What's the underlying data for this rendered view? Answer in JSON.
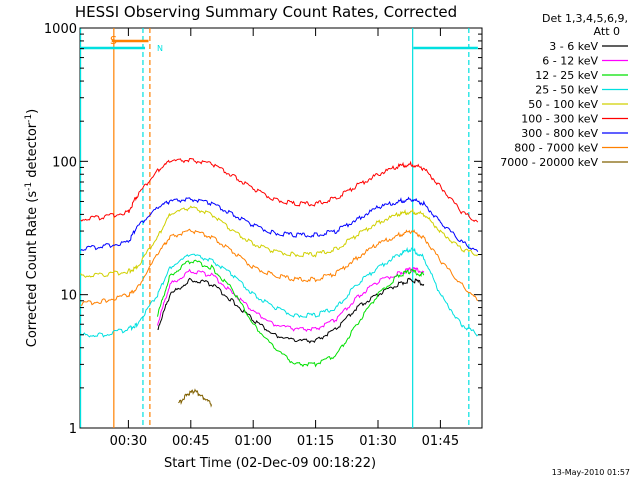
{
  "chart_data": {
    "type": "line",
    "title": "HESSI Observing Summary Count Rates, Corrected",
    "xlabel": "Start Time (02-Dec-09 00:18:22)",
    "ylabel": "Corrected Count Rate (s",
    "ylabel_sup1": "-1",
    "ylabel_mid": " detector",
    "ylabel_sup2": "-1",
    "ylabel_end": ")",
    "yscale": "log",
    "ylim": [
      1,
      1000
    ],
    "xlim": [
      "00:18:22",
      "01:55:00"
    ],
    "xticks": [
      "00:30",
      "00:45",
      "01:00",
      "01:15",
      "01:30",
      "01:45"
    ],
    "yticks": [
      "1",
      "10",
      "100",
      "1000"
    ],
    "legend_header": [
      "Det 1,3,4,5,6,9,",
      "Att 0"
    ],
    "legend_position": "right",
    "footer": "13-May-2010 01:57",
    "flag_label_s": "S",
    "flag_label_n": "N",
    "flag_values": [
      {
        "name": "flag-cyan-left",
        "from": "00:18:22",
        "to": "00:34:00",
        "color": "#00e0e0"
      },
      {
        "name": "flag-orange-s",
        "from": "00:26:00",
        "to": "00:34:50",
        "color": "#ff8000"
      },
      {
        "name": "flag-cyan-right",
        "from": "01:38:30",
        "to": "01:54:00",
        "color": "#00e0e0"
      }
    ],
    "vertical_markers": [
      {
        "time": "00:18:30",
        "color": "#00e0e0",
        "style": "solid"
      },
      {
        "time": "00:26:30",
        "color": "#ff8000",
        "style": "solid"
      },
      {
        "time": "00:33:30",
        "color": "#00e0e0",
        "style": "dashed"
      },
      {
        "time": "00:35:10",
        "color": "#ff8000",
        "style": "dashed"
      },
      {
        "time": "01:38:20",
        "color": "#00e0e0",
        "style": "solid"
      },
      {
        "time": "01:51:50",
        "color": "#00e0e0",
        "style": "dashed"
      }
    ],
    "series": [
      {
        "name": "3 - 6 keV",
        "color": "#000000",
        "times": [
          "00:37:00",
          "00:40:00",
          "00:45:00",
          "00:50:00",
          "00:55:00",
          "01:00:00",
          "01:05:00",
          "01:10:00",
          "01:15:00",
          "01:20:00",
          "01:25:00",
          "01:30:00",
          "01:35:00",
          "01:38:00",
          "01:41:00"
        ],
        "values": [
          5.5,
          10,
          13,
          12,
          9,
          6.5,
          5,
          4.5,
          4.5,
          5.5,
          8,
          10,
          12,
          13,
          12
        ]
      },
      {
        "name": "6 - 12 keV",
        "color": "#ff00ff",
        "times": [
          "00:37:00",
          "00:40:00",
          "00:45:00",
          "00:50:00",
          "00:55:00",
          "01:00:00",
          "01:05:00",
          "01:10:00",
          "01:15:00",
          "01:20:00",
          "01:25:00",
          "01:30:00",
          "01:35:00",
          "01:38:00",
          "01:41:00"
        ],
        "values": [
          6,
          12,
          15,
          14,
          10.5,
          7.5,
          6,
          5.5,
          5.5,
          6.5,
          9.5,
          12.5,
          14.5,
          15.5,
          15
        ]
      },
      {
        "name": "12 - 25 keV",
        "color": "#00e000",
        "times": [
          "00:37:00",
          "00:40:00",
          "00:45:00",
          "00:50:00",
          "00:55:00",
          "01:00:00",
          "01:05:00",
          "01:10:00",
          "01:15:00",
          "01:20:00",
          "01:25:00",
          "01:30:00",
          "01:35:00",
          "01:38:00",
          "01:41:00"
        ],
        "values": [
          7,
          14,
          18,
          16,
          11,
          6,
          4,
          3,
          3,
          3.5,
          6,
          10,
          14,
          15,
          14
        ]
      },
      {
        "name": "25 - 50 keV",
        "color": "#00e0e0",
        "times": [
          "00:18:30",
          "00:24:00",
          "00:30:00",
          "00:32:00",
          "00:37:00",
          "00:40:00",
          "00:45:00",
          "00:50:00",
          "00:55:00",
          "01:00:00",
          "01:05:00",
          "01:10:00",
          "01:15:00",
          "01:20:00",
          "01:25:00",
          "01:30:00",
          "01:35:00",
          "01:38:00",
          "01:41:00",
          "01:45:00",
          "01:50:00",
          "01:54:00"
        ],
        "values": [
          5,
          5,
          5.5,
          6,
          10,
          16,
          20,
          18,
          14,
          10,
          8,
          7,
          7,
          8,
          12,
          16,
          20,
          22,
          19,
          10,
          6,
          5
        ]
      },
      {
        "name": "50 - 100 keV",
        "color": "#d0d000",
        "times": [
          "00:18:30",
          "00:24:00",
          "00:30:00",
          "00:32:00",
          "00:37:00",
          "00:40:00",
          "00:45:00",
          "00:50:00",
          "00:55:00",
          "01:00:00",
          "01:05:00",
          "01:10:00",
          "01:15:00",
          "01:20:00",
          "01:25:00",
          "01:30:00",
          "01:35:00",
          "01:38:00",
          "01:41:00",
          "01:45:00",
          "01:50:00",
          "01:54:00"
        ],
        "values": [
          14,
          14,
          15,
          16,
          27,
          40,
          45,
          40,
          30,
          24,
          21,
          20,
          20,
          22,
          28,
          35,
          40,
          42,
          40,
          30,
          22,
          20
        ]
      },
      {
        "name": "100 - 300 keV",
        "color": "#ff0000",
        "times": [
          "00:18:30",
          "00:24:00",
          "00:30:00",
          "00:32:00",
          "00:37:00",
          "00:40:00",
          "00:45:00",
          "00:50:00",
          "00:55:00",
          "01:00:00",
          "01:05:00",
          "01:10:00",
          "01:15:00",
          "01:20:00",
          "01:25:00",
          "01:30:00",
          "01:35:00",
          "01:38:00",
          "01:41:00",
          "01:45:00",
          "01:50:00",
          "01:54:00"
        ],
        "values": [
          37,
          38,
          42,
          55,
          85,
          100,
          102,
          95,
          78,
          62,
          52,
          48,
          48,
          53,
          66,
          80,
          92,
          95,
          88,
          65,
          42,
          35
        ]
      },
      {
        "name": "300 - 800 keV",
        "color": "#0000ff",
        "times": [
          "00:18:30",
          "00:24:00",
          "00:30:00",
          "00:32:00",
          "00:37:00",
          "00:40:00",
          "00:45:00",
          "00:50:00",
          "00:55:00",
          "01:00:00",
          "01:05:00",
          "01:10:00",
          "01:15:00",
          "01:20:00",
          "01:25:00",
          "01:30:00",
          "01:35:00",
          "01:38:00",
          "01:41:00",
          "01:45:00",
          "01:50:00",
          "01:54:00"
        ],
        "values": [
          22,
          23,
          25,
          32,
          45,
          50,
          52,
          48,
          40,
          33,
          29,
          28,
          28,
          30,
          37,
          45,
          50,
          52,
          48,
          35,
          25,
          21
        ]
      },
      {
        "name": "800 - 7000 keV",
        "color": "#ff8000",
        "times": [
          "00:18:30",
          "00:24:00",
          "00:30:00",
          "00:32:00",
          "00:37:00",
          "00:40:00",
          "00:45:00",
          "00:50:00",
          "00:55:00",
          "01:00:00",
          "01:05:00",
          "01:10:00",
          "01:15:00",
          "01:20:00",
          "01:25:00",
          "01:30:00",
          "01:35:00",
          "01:38:00",
          "01:41:00",
          "01:45:00",
          "01:50:00",
          "01:54:00"
        ],
        "values": [
          8.5,
          9,
          10,
          11,
          20,
          27,
          30,
          27,
          21,
          16,
          14,
          13,
          13,
          14.5,
          19,
          24,
          28,
          30,
          27,
          18,
          12,
          9
        ]
      },
      {
        "name": "7000 - 20000 keV",
        "color": "#806000",
        "times": [
          "00:42:00",
          "00:44:00",
          "00:46:00",
          "00:48:00",
          "00:50:00"
        ],
        "values": [
          1.5,
          1.8,
          1.9,
          1.7,
          1.5
        ]
      }
    ]
  }
}
